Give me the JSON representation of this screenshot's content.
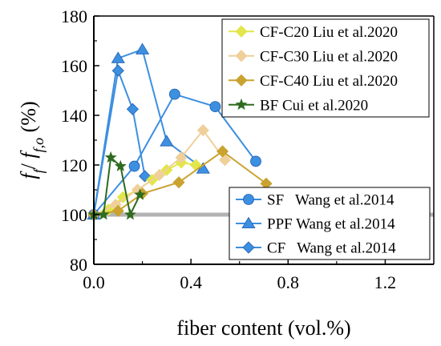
{
  "chart_data": {
    "type": "line",
    "xlabel": "fiber content (vol.%)",
    "ylabel_parts": [
      "f",
      "f",
      "/ ",
      "f",
      "f,o",
      " (%)"
    ],
    "xlim": [
      0,
      1.4
    ],
    "ylim": [
      80,
      180
    ],
    "xticks": [
      0.0,
      0.4,
      0.8,
      1.2
    ],
    "xtick_labels": [
      "0.0",
      "0.4",
      "0.8",
      "1.2"
    ],
    "yticks": [
      80,
      100,
      120,
      140,
      160,
      180
    ],
    "ytick_labels": [
      "80",
      "100",
      "120",
      "140",
      "160",
      "180"
    ],
    "reference_line": {
      "y": 100,
      "x": [
        0,
        1.4
      ],
      "color": "#b3b3b3"
    },
    "legend_groups": [
      {
        "placement": "top-right",
        "series": [
          "CF-C20 Liu et al.2020",
          "CF-C30 Liu et al.2020",
          "CF-C40 Liu et al.2020",
          "BF Cui et al.2020"
        ]
      },
      {
        "placement": "bottom-right",
        "series": [
          "SF   Wang et al.2014",
          "PPF Wang et al.2014",
          "CF   Wang et al.2014"
        ]
      }
    ],
    "series": [
      {
        "name": "SF   Wang et al.2014",
        "marker": "circle",
        "color": "#3d8fe0",
        "x": [
          0,
          0.167,
          0.333,
          0.5,
          0.667
        ],
        "y": [
          100,
          119.5,
          148.5,
          143.5,
          121.5
        ]
      },
      {
        "name": "PPF Wang et al.2014",
        "marker": "triangle",
        "color": "#3d8fe0",
        "x": [
          0,
          0.1,
          0.2,
          0.3,
          0.45
        ],
        "y": [
          100,
          163,
          166.5,
          129.5,
          118.5
        ]
      },
      {
        "name": "CF   Wang et al.2014",
        "marker": "diamond",
        "color": "#3d8fe0",
        "x": [
          0,
          0.1,
          0.16,
          0.21
        ],
        "y": [
          100,
          158,
          142.5,
          115.5
        ]
      },
      {
        "name": "CF-C20 Liu et al.2020",
        "marker": "diamond",
        "color": "#e2e64a",
        "x": [
          0,
          0.06,
          0.12,
          0.18,
          0.24,
          0.3,
          0.36,
          0.42
        ],
        "y": [
          100,
          102,
          107,
          110,
          114,
          118,
          121,
          120
        ]
      },
      {
        "name": "CF-C30 Liu et al.2020",
        "marker": "diamond",
        "color": "#efd09a",
        "x": [
          0,
          0.09,
          0.18,
          0.27,
          0.36,
          0.45,
          0.54
        ],
        "y": [
          100,
          104,
          110,
          116,
          123,
          134,
          122
        ]
      },
      {
        "name": "CF-C40 Liu et al.2020",
        "marker": "diamond",
        "color": "#c9a230",
        "x": [
          0,
          0.1,
          0.2,
          0.35,
          0.53,
          0.71
        ],
        "y": [
          100,
          101.5,
          108.5,
          113,
          125.5,
          112.5
        ]
      },
      {
        "name": "BF Cui et al.2020",
        "marker": "star",
        "color": "#2e6b1f",
        "x": [
          0,
          0.04,
          0.07,
          0.11,
          0.15,
          0.19
        ],
        "y": [
          100,
          100,
          123,
          119.5,
          100,
          108
        ]
      }
    ]
  }
}
